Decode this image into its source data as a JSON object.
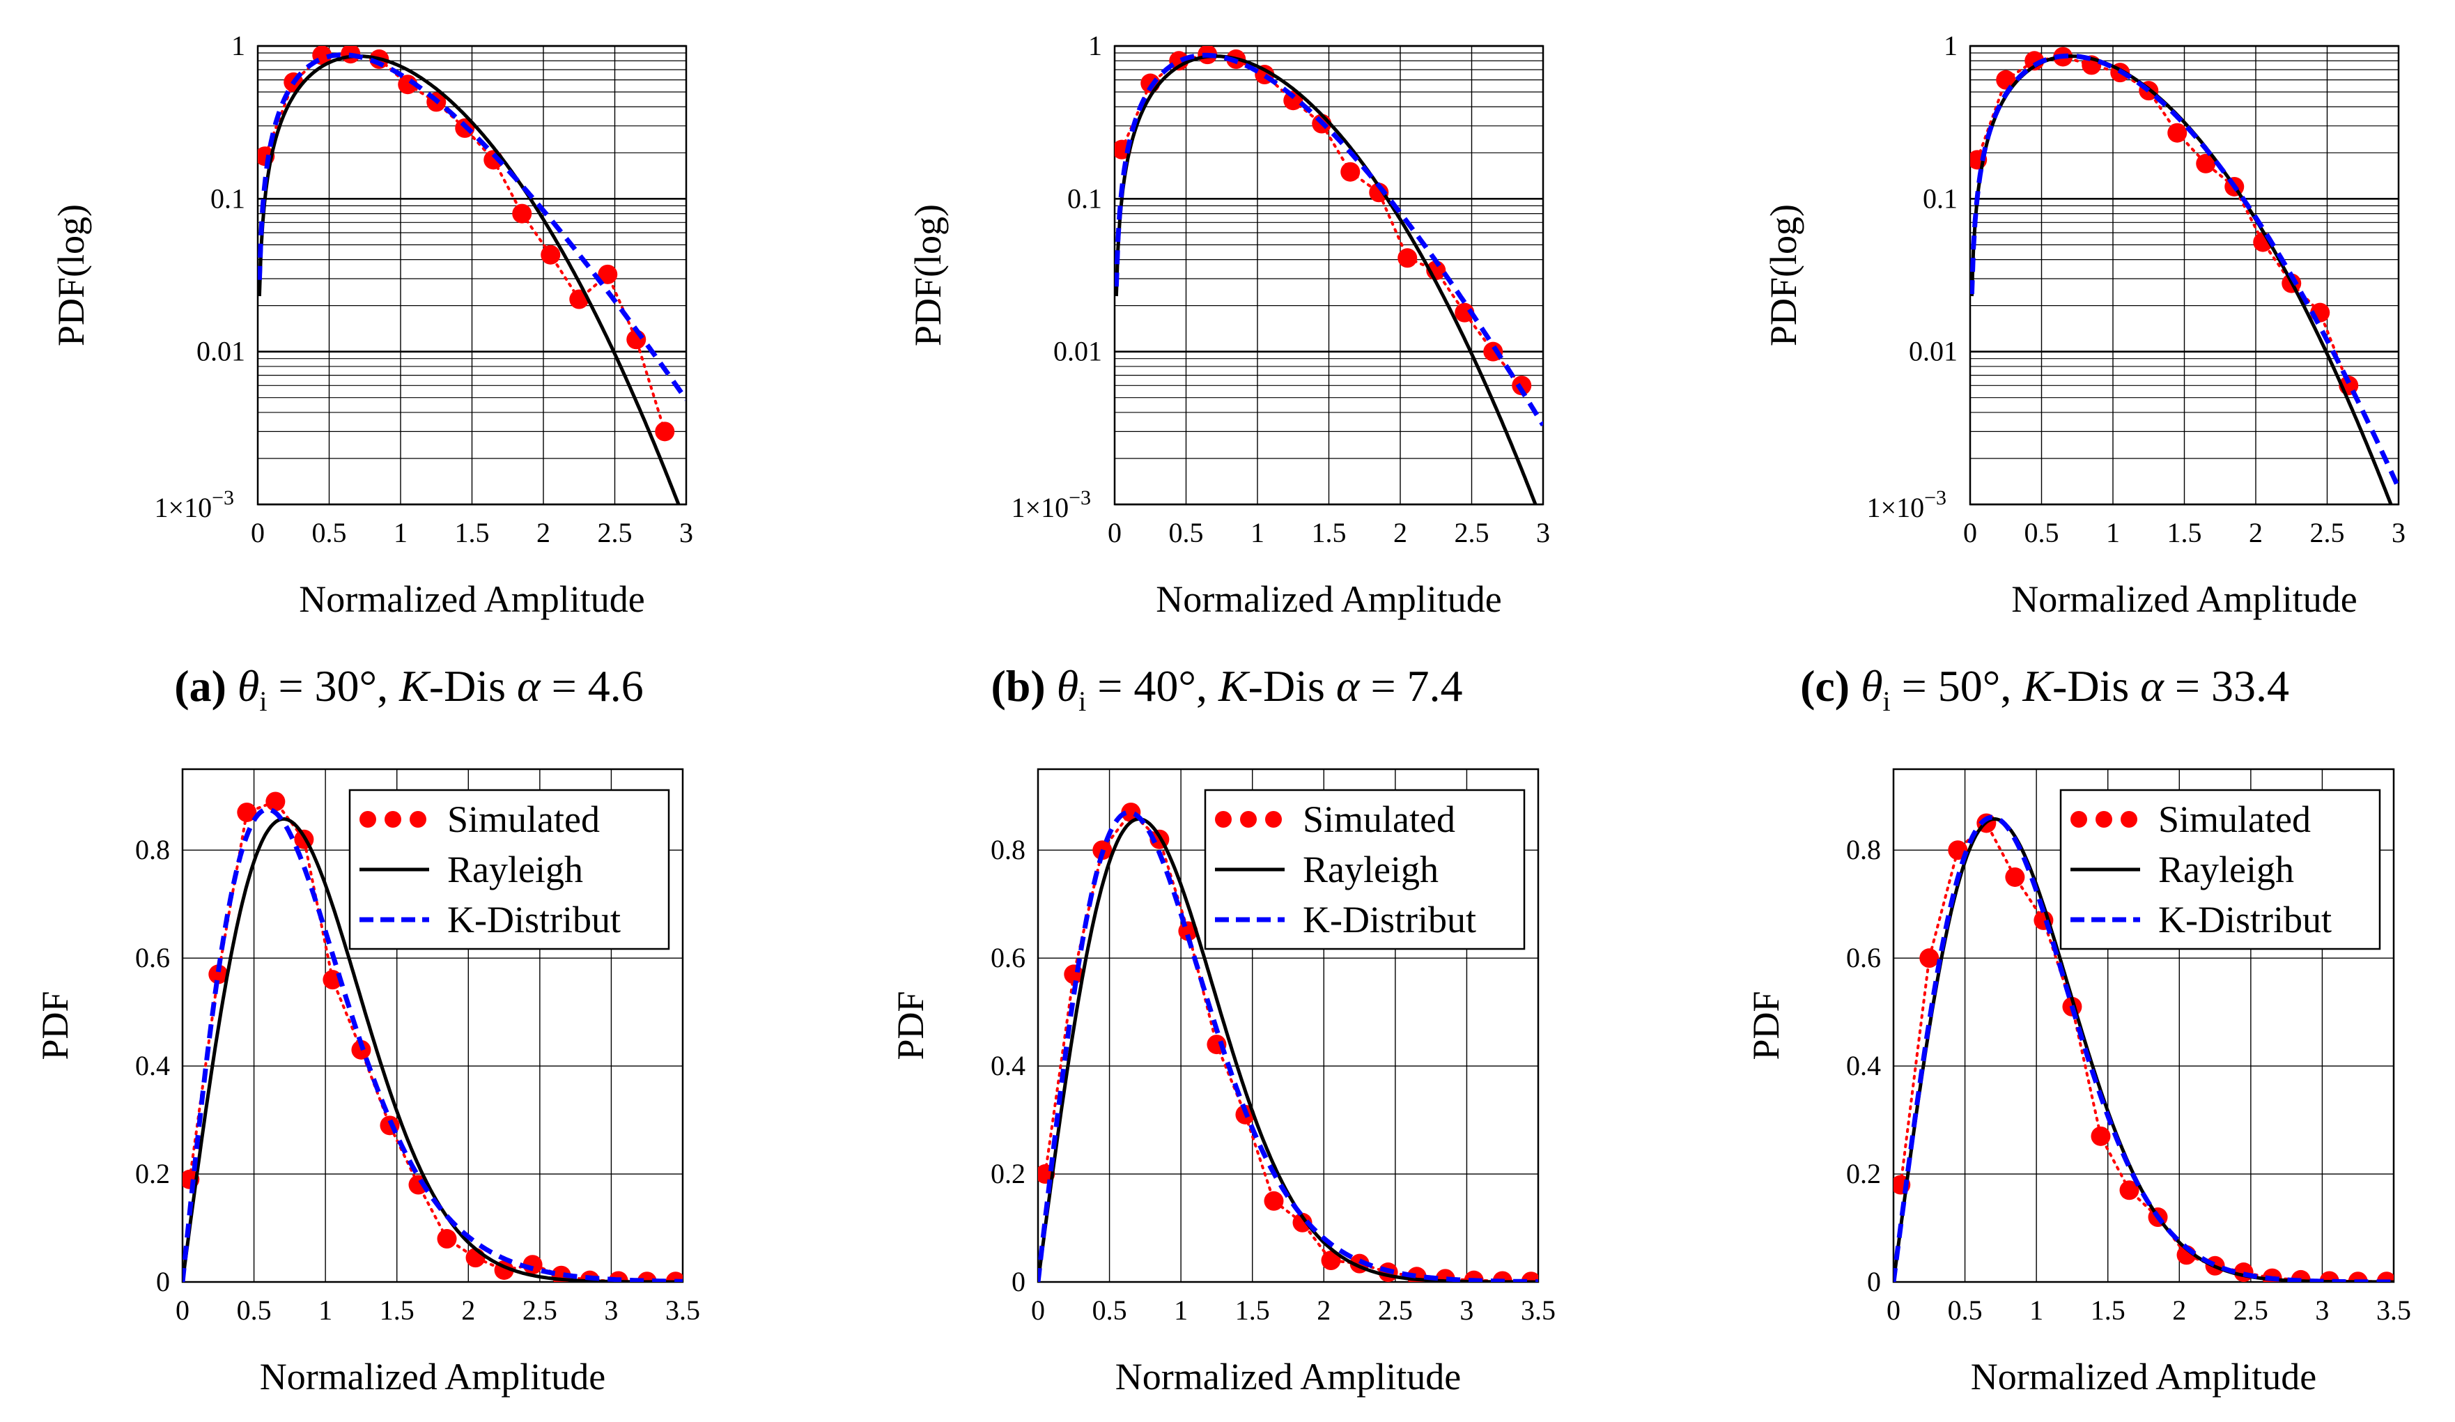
{
  "colors": {
    "simulated": "#ff0000",
    "rayleigh": "#000000",
    "kdist": "#0000ff",
    "grid": "#000000"
  },
  "captions": [
    {
      "tag": "(a)",
      "theta": "θ",
      "sub": "i",
      "angle_text": " = 30°, ",
      "k": "K",
      "dis": "-Dis ",
      "alpha": "α",
      "alpha_val": " = 4.6"
    },
    {
      "tag": "(b)",
      "theta": "θ",
      "sub": "i",
      "angle_text": " = 40°, ",
      "k": "K",
      "dis": "-Dis ",
      "alpha": "α",
      "alpha_val": " = 7.4"
    },
    {
      "tag": "(c)",
      "theta": "θ",
      "sub": "i",
      "angle_text": " = 50°, ",
      "k": "K",
      "dis": "-Dis ",
      "alpha": "α",
      "alpha_val": " = 33.4"
    }
  ],
  "chart_data": [
    {
      "type": "line",
      "scale": "log",
      "title": "",
      "xlabel": "Normalized Amplitude",
      "ylabel": "PDF(log)",
      "xlim": [
        0,
        3
      ],
      "ylim": [
        0.001,
        1
      ],
      "xticks": [
        "0",
        "0.5",
        "1",
        "1.5",
        "2",
        "2.5",
        "3"
      ],
      "yticks": [
        {
          "label": "1",
          "value": 1
        },
        {
          "label": "0.1",
          "value": 0.1
        },
        {
          "label": "0.01",
          "value": 0.01
        },
        {
          "label": "1×10",
          "sup": "−3",
          "value": 0.001
        }
      ],
      "alpha": 4.6,
      "series": [
        {
          "name": "Simulated",
          "x": [
            0.05,
            0.25,
            0.45,
            0.65,
            0.85,
            1.05,
            1.25,
            1.45,
            1.65,
            1.85,
            2.05,
            2.25,
            2.45,
            2.65,
            2.85
          ],
          "values": [
            0.19,
            0.58,
            0.87,
            0.89,
            0.82,
            0.56,
            0.43,
            0.29,
            0.18,
            0.08,
            0.043,
            0.022,
            0.032,
            0.012,
            0.003
          ]
        },
        {
          "name": "Rayleigh",
          "model": "rayleigh"
        },
        {
          "name": "K-Distribut",
          "model": "kdist"
        }
      ]
    },
    {
      "type": "line",
      "scale": "log",
      "title": "",
      "xlabel": "Normalized Amplitude",
      "ylabel": "PDF(log)",
      "xlim": [
        0,
        3
      ],
      "ylim": [
        0.001,
        1
      ],
      "xticks": [
        "0",
        "0.5",
        "1",
        "1.5",
        "2",
        "2.5",
        "3"
      ],
      "yticks": [
        {
          "label": "1",
          "value": 1
        },
        {
          "label": "0.1",
          "value": 0.1
        },
        {
          "label": "0.01",
          "value": 0.01
        },
        {
          "label": "1×10",
          "sup": "−3",
          "value": 0.001
        }
      ],
      "alpha": 7.4,
      "series": [
        {
          "name": "Simulated",
          "x": [
            0.05,
            0.25,
            0.45,
            0.65,
            0.85,
            1.05,
            1.25,
            1.45,
            1.65,
            1.85,
            2.05,
            2.25,
            2.45,
            2.65,
            2.85
          ],
          "values": [
            0.21,
            0.57,
            0.8,
            0.88,
            0.82,
            0.65,
            0.44,
            0.31,
            0.15,
            0.11,
            0.041,
            0.034,
            0.018,
            0.01,
            0.006
          ]
        },
        {
          "name": "Rayleigh",
          "model": "rayleigh"
        },
        {
          "name": "K-Distribut",
          "model": "kdist"
        }
      ]
    },
    {
      "type": "line",
      "scale": "log",
      "title": "",
      "xlabel": "Normalized Amplitude",
      "ylabel": "PDF(log)",
      "xlim": [
        0,
        3
      ],
      "ylim": [
        0.001,
        1
      ],
      "xticks": [
        "0",
        "0.5",
        "1",
        "1.5",
        "2",
        "2.5",
        "3"
      ],
      "yticks": [
        {
          "label": "1",
          "value": 1
        },
        {
          "label": "0.1",
          "value": 0.1
        },
        {
          "label": "0.01",
          "value": 0.01
        },
        {
          "label": "1×10",
          "sup": "−3",
          "value": 0.001
        }
      ],
      "alpha": 33.4,
      "series": [
        {
          "name": "Simulated",
          "x": [
            0.05,
            0.25,
            0.45,
            0.65,
            0.85,
            1.05,
            1.25,
            1.45,
            1.65,
            1.85,
            2.05,
            2.25,
            2.45,
            2.65
          ],
          "values": [
            0.18,
            0.6,
            0.8,
            0.85,
            0.75,
            0.67,
            0.51,
            0.27,
            0.17,
            0.12,
            0.052,
            0.028,
            0.018,
            0.006
          ]
        },
        {
          "name": "Rayleigh",
          "model": "rayleigh"
        },
        {
          "name": "K-Distribut",
          "model": "kdist"
        }
      ]
    },
    {
      "type": "line",
      "scale": "linear",
      "title": "",
      "xlabel": "Normalized Amplitude",
      "ylabel": "PDF",
      "xlim": [
        0,
        3.5
      ],
      "ylim": [
        0,
        0.95
      ],
      "xticks": [
        "0",
        "0.5",
        "1",
        "1.5",
        "2",
        "2.5",
        "3",
        "3.5"
      ],
      "yticks": [
        {
          "label": "0",
          "value": 0
        },
        {
          "label": "0.2",
          "value": 0.2
        },
        {
          "label": "0.4",
          "value": 0.4
        },
        {
          "label": "0.6",
          "value": 0.6
        },
        {
          "label": "0.8",
          "value": 0.8
        }
      ],
      "alpha": 4.6,
      "legend": {
        "position": "top-right",
        "entries": [
          "Simulated",
          "Rayleigh",
          "K-Distribut"
        ]
      },
      "series": [
        {
          "name": "Simulated",
          "x": [
            0.05,
            0.25,
            0.45,
            0.65,
            0.85,
            1.05,
            1.25,
            1.45,
            1.65,
            1.85,
            2.05,
            2.25,
            2.45,
            2.65,
            2.85,
            3.05,
            3.25,
            3.45
          ],
          "values": [
            0.19,
            0.57,
            0.87,
            0.89,
            0.82,
            0.56,
            0.43,
            0.29,
            0.18,
            0.08,
            0.045,
            0.022,
            0.032,
            0.012,
            0.003,
            0.002,
            0.001,
            0.001
          ]
        },
        {
          "name": "Rayleigh",
          "model": "rayleigh"
        },
        {
          "name": "K-Distribut",
          "model": "kdist"
        }
      ]
    },
    {
      "type": "line",
      "scale": "linear",
      "title": "",
      "xlabel": "Normalized Amplitude",
      "ylabel": "PDF",
      "xlim": [
        0,
        3.5
      ],
      "ylim": [
        0,
        0.95
      ],
      "xticks": [
        "0",
        "0.5",
        "1",
        "1.5",
        "2",
        "2.5",
        "3",
        "3.5"
      ],
      "yticks": [
        {
          "label": "0",
          "value": 0
        },
        {
          "label": "0.2",
          "value": 0.2
        },
        {
          "label": "0.4",
          "value": 0.4
        },
        {
          "label": "0.6",
          "value": 0.6
        },
        {
          "label": "0.8",
          "value": 0.8
        }
      ],
      "alpha": 7.4,
      "legend": {
        "position": "top-right",
        "entries": [
          "Simulated",
          "Rayleigh",
          "K-Distribut"
        ]
      },
      "series": [
        {
          "name": "Simulated",
          "x": [
            0.05,
            0.25,
            0.45,
            0.65,
            0.85,
            1.05,
            1.25,
            1.45,
            1.65,
            1.85,
            2.05,
            2.25,
            2.45,
            2.65,
            2.85,
            3.05,
            3.25,
            3.45
          ],
          "values": [
            0.2,
            0.57,
            0.8,
            0.87,
            0.82,
            0.65,
            0.44,
            0.31,
            0.15,
            0.11,
            0.04,
            0.034,
            0.018,
            0.01,
            0.006,
            0.003,
            0.002,
            0.001
          ]
        },
        {
          "name": "Rayleigh",
          "model": "rayleigh"
        },
        {
          "name": "K-Distribut",
          "model": "kdist"
        }
      ]
    },
    {
      "type": "line",
      "scale": "linear",
      "title": "",
      "xlabel": "Normalized Amplitude",
      "ylabel": "PDF",
      "xlim": [
        0,
        3.5
      ],
      "ylim": [
        0,
        0.95
      ],
      "xticks": [
        "0",
        "0.5",
        "1",
        "1.5",
        "2",
        "2.5",
        "3",
        "3.5"
      ],
      "yticks": [
        {
          "label": "0",
          "value": 0
        },
        {
          "label": "0.2",
          "value": 0.2
        },
        {
          "label": "0.4",
          "value": 0.4
        },
        {
          "label": "0.6",
          "value": 0.6
        },
        {
          "label": "0.8",
          "value": 0.8
        }
      ],
      "alpha": 33.4,
      "legend": {
        "position": "top-right",
        "entries": [
          "Simulated",
          "Rayleigh",
          "K-Distribut"
        ]
      },
      "series": [
        {
          "name": "Simulated",
          "x": [
            0.05,
            0.25,
            0.45,
            0.65,
            0.85,
            1.05,
            1.25,
            1.45,
            1.65,
            1.85,
            2.05,
            2.25,
            2.45,
            2.65,
            2.85,
            3.05,
            3.25,
            3.45
          ],
          "values": [
            0.18,
            0.6,
            0.8,
            0.85,
            0.75,
            0.67,
            0.51,
            0.27,
            0.17,
            0.12,
            0.05,
            0.03,
            0.018,
            0.007,
            0.004,
            0.002,
            0.001,
            0.001
          ]
        },
        {
          "name": "Rayleigh",
          "model": "rayleigh"
        },
        {
          "name": "K-Distribut",
          "model": "kdist"
        }
      ]
    }
  ]
}
